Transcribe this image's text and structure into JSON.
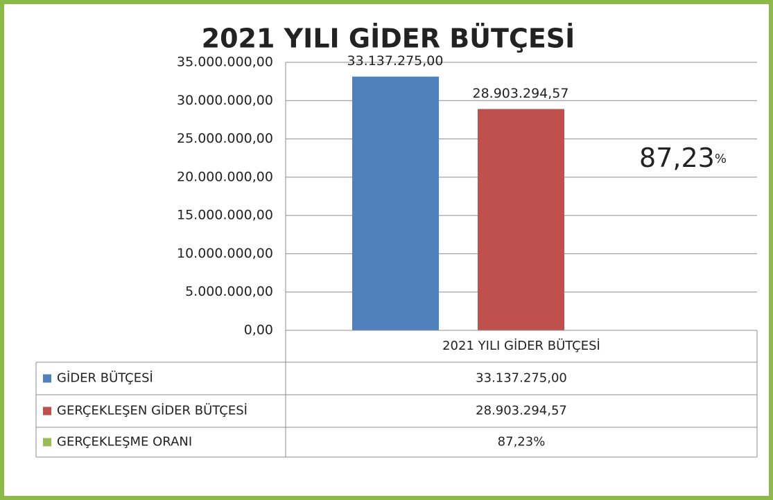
{
  "chart_data": {
    "type": "bar",
    "title": "2021 YILI GİDER BÜTÇESİ",
    "categories": [
      "2021 YILI GİDER BÜTÇESİ"
    ],
    "series": [
      {
        "name": "GİDER BÜTÇESİ",
        "color": "#4f81bd",
        "values": [
          33137275.0
        ],
        "value_labels": [
          "33.137.275,00"
        ]
      },
      {
        "name": "GERÇEKLEŞEN GİDER BÜTÇESİ",
        "color": "#c0504d",
        "values": [
          28903294.57
        ],
        "value_labels": [
          "28.903.294,57"
        ]
      },
      {
        "name": "GERÇEKLEŞME ORANI",
        "color": "#9bbb59",
        "values": [
          87.23
        ],
        "value_labels": [
          "87,23%"
        ]
      }
    ],
    "annotation": "87,23",
    "annotation_unit": "%",
    "ylim": [
      0,
      35000000
    ],
    "yticks": [
      {
        "value": 0,
        "label": "0,00"
      },
      {
        "value": 5000000,
        "label": "5.000.000,00"
      },
      {
        "value": 10000000,
        "label": "10.000.000,00"
      },
      {
        "value": 15000000,
        "label": "15.000.000,00"
      },
      {
        "value": 20000000,
        "label": "20.000.000,00"
      },
      {
        "value": 25000000,
        "label": "25.000.000,00"
      },
      {
        "value": 30000000,
        "label": "30.000.000,00"
      },
      {
        "value": 35000000,
        "label": "35.000.000,00"
      }
    ],
    "grid": true,
    "data_table": true
  }
}
